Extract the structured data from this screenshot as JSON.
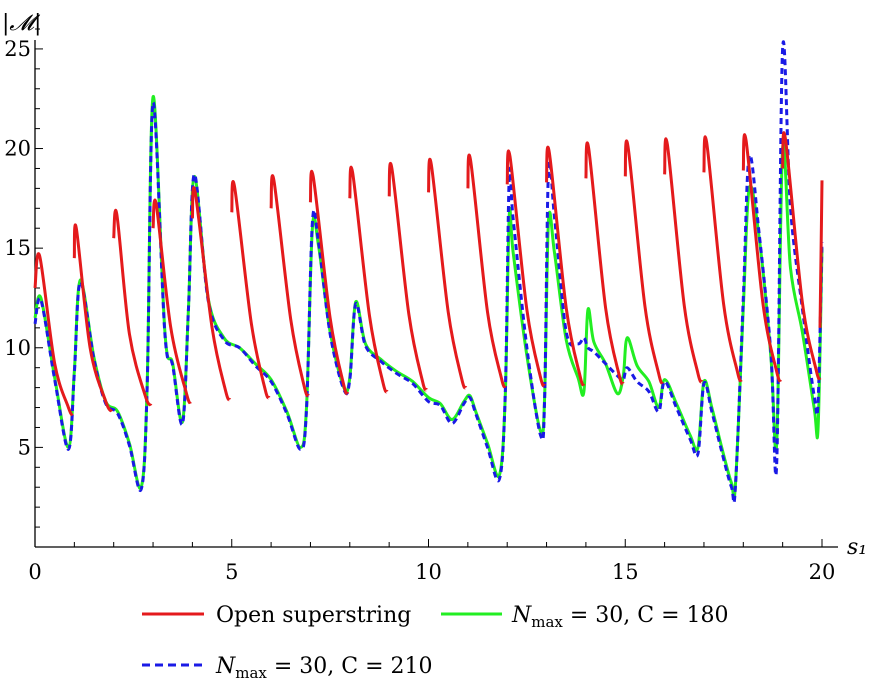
{
  "chart_data": {
    "type": "line",
    "xlabel": "s₁",
    "ylabel": "|𝓜|",
    "xlim": [
      0,
      20
    ],
    "ylim": [
      0,
      26
    ],
    "xticks": [
      0,
      5,
      10,
      15,
      20
    ],
    "yticks": [
      5,
      10,
      15,
      20,
      25
    ],
    "grid": false,
    "legend_position": "bottom",
    "series": [
      {
        "name": "Open superstring",
        "color": "#e41a1c",
        "style": "solid",
        "segments": [
          {
            "x": [
              0,
              0.12,
              0.5,
              0.85,
              0.95
            ],
            "y": [
              13.0,
              14.6,
              9.2,
              7.0,
              6.6
            ]
          },
          {
            "x": [
              1.0,
              1.05,
              1.4,
              1.8,
              1.95
            ],
            "y": [
              14.5,
              16.0,
              10.0,
              7.3,
              6.8
            ]
          },
          {
            "x": [
              2.0,
              2.08,
              2.4,
              2.8,
              2.95
            ],
            "y": [
              15.5,
              16.7,
              10.7,
              7.6,
              7.1
            ]
          },
          {
            "x": [
              3.0,
              3.08,
              3.45,
              3.85,
              3.95
            ],
            "y": [
              16.0,
              17.2,
              11.0,
              7.7,
              7.2
            ]
          },
          {
            "x": [
              4.0,
              4.07,
              4.5,
              4.85,
              4.95
            ],
            "y": [
              16.5,
              17.8,
              11.0,
              7.8,
              7.4
            ]
          },
          {
            "x": [
              5.0,
              5.07,
              5.5,
              5.85,
              5.95
            ],
            "y": [
              16.8,
              18.1,
              11.2,
              7.9,
              7.5
            ]
          },
          {
            "x": [
              6.0,
              6.07,
              6.5,
              6.85,
              6.95
            ],
            "y": [
              17.0,
              18.4,
              11.4,
              8.0,
              7.6
            ]
          },
          {
            "x": [
              7.0,
              7.07,
              7.5,
              7.85,
              7.95
            ],
            "y": [
              17.3,
              18.6,
              11.5,
              8.1,
              7.7
            ]
          },
          {
            "x": [
              8.0,
              8.07,
              8.5,
              8.85,
              8.95
            ],
            "y": [
              17.5,
              18.8,
              11.6,
              8.2,
              7.8
            ]
          },
          {
            "x": [
              9.0,
              9.07,
              9.5,
              9.85,
              9.95
            ],
            "y": [
              17.6,
              19.0,
              11.7,
              8.3,
              7.9
            ]
          },
          {
            "x": [
              10.0,
              10.07,
              10.5,
              10.85,
              10.95
            ],
            "y": [
              17.8,
              19.2,
              11.8,
              8.4,
              8.0
            ]
          },
          {
            "x": [
              11.0,
              11.07,
              11.5,
              11.85,
              11.95
            ],
            "y": [
              18.0,
              19.4,
              11.8,
              8.5,
              8.0
            ]
          },
          {
            "x": [
              12.0,
              12.07,
              12.5,
              12.85,
              12.95
            ],
            "y": [
              18.2,
              19.6,
              11.9,
              8.5,
              8.1
            ]
          },
          {
            "x": [
              13.0,
              13.07,
              13.5,
              13.85,
              13.95
            ],
            "y": [
              18.3,
              19.8,
              12.0,
              8.6,
              8.1
            ]
          },
          {
            "x": [
              14.0,
              14.07,
              14.5,
              14.85,
              14.95
            ],
            "y": [
              18.5,
              20.0,
              12.0,
              8.6,
              8.2
            ]
          },
          {
            "x": [
              15.0,
              15.07,
              15.5,
              15.85,
              15.95
            ],
            "y": [
              18.6,
              20.1,
              12.1,
              8.7,
              8.2
            ]
          },
          {
            "x": [
              16.0,
              16.07,
              16.5,
              16.85,
              16.95
            ],
            "y": [
              18.7,
              20.2,
              12.1,
              8.7,
              8.3
            ]
          },
          {
            "x": [
              17.0,
              17.07,
              17.5,
              17.85,
              17.95
            ],
            "y": [
              18.8,
              20.3,
              12.2,
              8.8,
              8.3
            ]
          },
          {
            "x": [
              18.0,
              18.07,
              18.5,
              18.85,
              18.95
            ],
            "y": [
              18.9,
              20.4,
              12.2,
              8.8,
              8.3
            ]
          },
          {
            "x": [
              19.0,
              19.07,
              19.5,
              19.85,
              19.95
            ],
            "y": [
              19.0,
              20.5,
              12.3,
              8.9,
              8.4
            ]
          },
          {
            "x": [
              19.95,
              20.0
            ],
            "y": [
              11.0,
              18.4
            ]
          }
        ]
      },
      {
        "name": "N_max = 30, C = 180",
        "color": "#22ee22",
        "style": "solid",
        "x": [
          0,
          0.15,
          0.5,
          0.85,
          1.0,
          1.15,
          1.5,
          1.8,
          2.1,
          2.4,
          2.7,
          2.85,
          3.0,
          3.3,
          3.5,
          3.75,
          3.9,
          4.05,
          4.4,
          4.8,
          5.2,
          5.6,
          6.0,
          6.4,
          6.75,
          6.9,
          7.05,
          7.2,
          7.5,
          7.85,
          8.0,
          8.15,
          8.4,
          8.8,
          9.2,
          9.6,
          10.0,
          10.3,
          10.6,
          10.9,
          11.05,
          11.2,
          11.5,
          11.8,
          11.95,
          12.05,
          12.15,
          12.5,
          12.85,
          12.95,
          13.05,
          13.2,
          13.5,
          13.8,
          13.95,
          14.05,
          14.2,
          14.5,
          14.8,
          14.95,
          15.05,
          15.3,
          15.6,
          15.85,
          16.0,
          16.3,
          16.65,
          16.85,
          17.0,
          17.2,
          17.45,
          17.7,
          17.8,
          18.0,
          18.15,
          18.4,
          18.7,
          18.85,
          19.0,
          19.2,
          19.5,
          19.8,
          19.9,
          20.0
        ],
        "y": [
          11.5,
          12.5,
          8.5,
          5.0,
          8.8,
          13.4,
          9.5,
          7.3,
          6.8,
          5.2,
          3.0,
          8.0,
          22.6,
          10.8,
          9.2,
          6.3,
          12.0,
          18.6,
          12.5,
          10.5,
          10.0,
          9.2,
          8.4,
          6.8,
          5.0,
          7.0,
          16.0,
          15.2,
          10.8,
          8.0,
          8.5,
          12.3,
          10.2,
          9.4,
          8.8,
          8.3,
          7.5,
          7.2,
          6.4,
          7.3,
          7.6,
          6.8,
          5.2,
          3.6,
          7.5,
          16.6,
          14.8,
          9.6,
          5.8,
          7.5,
          16.4,
          14.8,
          10.4,
          8.5,
          7.8,
          11.9,
          10.3,
          9.2,
          7.7,
          8.6,
          10.5,
          9.1,
          8.3,
          7.0,
          8.4,
          7.2,
          5.6,
          5.0,
          8.3,
          7.0,
          5.0,
          3.2,
          3.1,
          12.0,
          18.0,
          15.6,
          9.6,
          5.2,
          20.0,
          14.0,
          10.8,
          7.0,
          6.0,
          15.0
        ]
      },
      {
        "name": "N_max = 30, C = 210",
        "color": "#1a1ae6",
        "style": "dashed",
        "x": [
          0,
          0.15,
          0.5,
          0.85,
          1.0,
          1.15,
          1.5,
          1.8,
          2.1,
          2.4,
          2.7,
          2.85,
          3.0,
          3.3,
          3.5,
          3.75,
          3.9,
          4.05,
          4.4,
          4.8,
          5.2,
          5.6,
          6.0,
          6.4,
          6.75,
          6.9,
          7.05,
          7.2,
          7.5,
          7.85,
          8.0,
          8.15,
          8.4,
          8.8,
          9.2,
          9.6,
          10.0,
          10.3,
          10.6,
          10.9,
          11.05,
          11.2,
          11.5,
          11.8,
          11.95,
          12.05,
          12.15,
          12.5,
          12.85,
          12.95,
          13.05,
          13.2,
          13.5,
          13.8,
          13.95,
          14.05,
          14.2,
          14.5,
          14.8,
          14.95,
          15.05,
          15.3,
          15.6,
          15.85,
          16.0,
          16.3,
          16.65,
          16.85,
          17.0,
          17.2,
          17.45,
          17.7,
          17.8,
          18.0,
          18.15,
          18.4,
          18.7,
          18.85,
          19.0,
          19.2,
          19.5,
          19.8,
          19.9,
          20.0
        ],
        "y": [
          11.2,
          12.4,
          8.4,
          4.9,
          8.7,
          13.3,
          9.4,
          7.2,
          6.7,
          5.1,
          2.9,
          7.9,
          22.3,
          10.7,
          9.1,
          6.2,
          12.0,
          18.7,
          12.4,
          10.4,
          10.0,
          9.1,
          8.3,
          6.7,
          4.9,
          6.9,
          16.3,
          15.4,
          10.7,
          7.9,
          8.4,
          12.2,
          10.1,
          9.3,
          8.7,
          8.2,
          7.3,
          7.1,
          6.2,
          7.2,
          7.5,
          6.7,
          5.0,
          3.4,
          7.6,
          18.5,
          16.5,
          10.0,
          5.6,
          7.4,
          18.9,
          16.6,
          10.8,
          10.2,
          10.5,
          10.0,
          9.8,
          9.2,
          8.6,
          8.4,
          9.0,
          8.3,
          7.8,
          6.8,
          8.3,
          7.0,
          5.4,
          4.7,
          8.2,
          6.8,
          4.8,
          3.0,
          3.0,
          12.5,
          19.6,
          15.8,
          9.8,
          4.2,
          25.0,
          17.0,
          12.0,
          7.6,
          7.3,
          15.3
        ]
      }
    ]
  },
  "legend": {
    "items": [
      {
        "label": "Open superstring",
        "color": "#e41a1c",
        "style": "solid"
      },
      {
        "label_italic": "N",
        "label_sub": "max",
        "label_rest": " = 30, C = 180",
        "color": "#22ee22",
        "style": "solid"
      },
      {
        "label_italic": "N",
        "label_sub": "max",
        "label_rest": " = 30, C = 210",
        "color": "#1a1ae6",
        "style": "dashed"
      }
    ]
  }
}
